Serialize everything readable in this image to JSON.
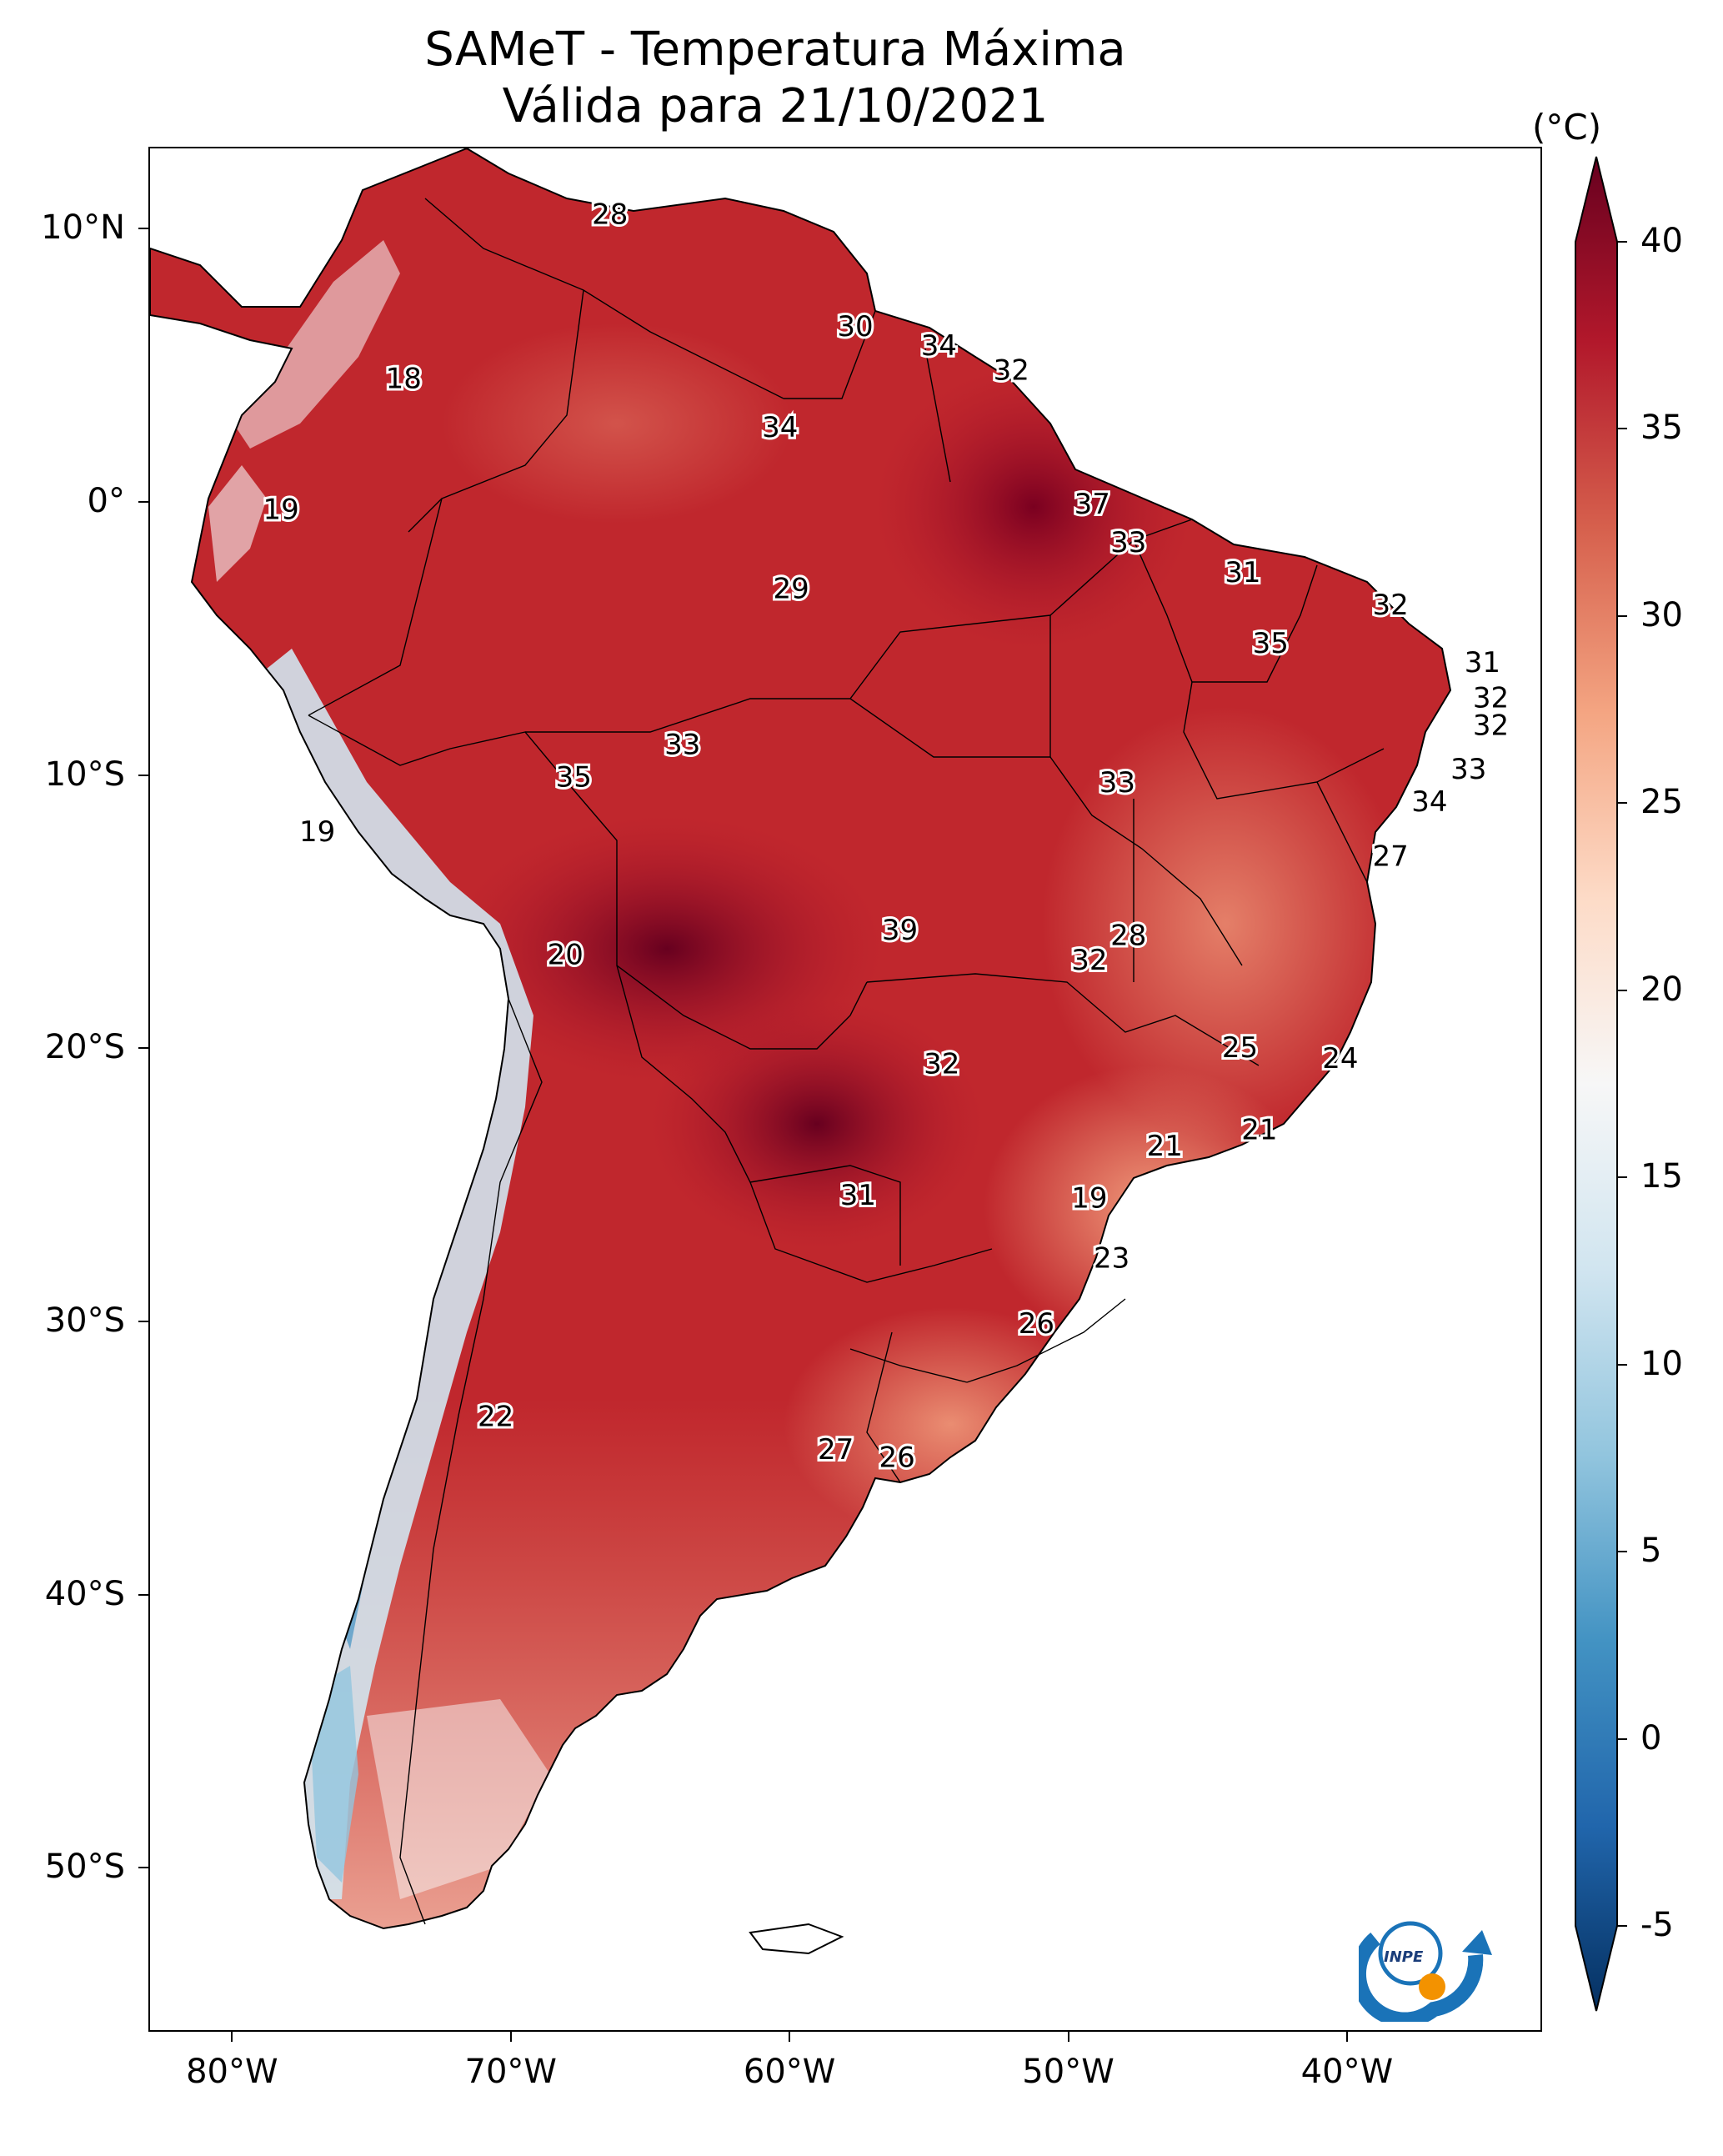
{
  "title": {
    "line1": "SAMeT - Temperatura Máxima",
    "line2": "Válida para 21/10/2021"
  },
  "latitude_labels": [
    "10°N",
    "0°",
    "10°S",
    "20°S",
    "30°S",
    "40°S",
    "50°S"
  ],
  "longitude_labels": [
    "80°W",
    "70°W",
    "60°W",
    "50°W",
    "40°W"
  ],
  "colorbar": {
    "unit": "(°C)",
    "ticks": [
      "40",
      "35",
      "30",
      "25",
      "20",
      "15",
      "10",
      "5",
      "0",
      "-5"
    ],
    "colors": [
      "#053061",
      "#2166ac",
      "#4393c3",
      "#92c5de",
      "#d1e5f0",
      "#f7f7f7",
      "#fddbc7",
      "#f4a582",
      "#d6604d",
      "#b2182b",
      "#67001f"
    ]
  },
  "logo": {
    "text": "INPE"
  },
  "station_values": [
    {
      "label": "28",
      "lon": -66.5,
      "lat": 10.6
    },
    {
      "label": "30",
      "lon": -57.7,
      "lat": 6.5
    },
    {
      "label": "34",
      "lon": -54.7,
      "lat": 5.8
    },
    {
      "label": "32",
      "lon": -52.1,
      "lat": 4.9
    },
    {
      "label": "18",
      "lon": -73.9,
      "lat": 4.6
    },
    {
      "label": "34",
      "lon": -60.4,
      "lat": 2.8
    },
    {
      "label": "37",
      "lon": -49.2,
      "lat": 0.0
    },
    {
      "label": "19",
      "lon": -78.3,
      "lat": -0.2
    },
    {
      "label": "33",
      "lon": -47.9,
      "lat": -1.4
    },
    {
      "label": "31",
      "lon": -43.8,
      "lat": -2.5
    },
    {
      "label": "29",
      "lon": -60.0,
      "lat": -3.1
    },
    {
      "label": "32",
      "lon": -38.5,
      "lat": -3.7
    },
    {
      "label": "35",
      "lon": -42.8,
      "lat": -5.1
    },
    {
      "label": "31",
      "lon": -35.2,
      "lat": -5.8
    },
    {
      "label": "32",
      "lon": -34.9,
      "lat": -7.1
    },
    {
      "label": "32",
      "lon": -34.9,
      "lat": -8.1
    },
    {
      "label": "33",
      "lon": -63.9,
      "lat": -8.8
    },
    {
      "label": "35",
      "lon": -67.8,
      "lat": -10.0
    },
    {
      "label": "33",
      "lon": -48.3,
      "lat": -10.2
    },
    {
      "label": "33",
      "lon": -35.7,
      "lat": -9.7
    },
    {
      "label": "34",
      "lon": -37.1,
      "lat": -10.9
    },
    {
      "label": "19",
      "lon": -77.0,
      "lat": -12.0
    },
    {
      "label": "27",
      "lon": -38.5,
      "lat": -12.9
    },
    {
      "label": "39",
      "lon": -56.1,
      "lat": -15.6
    },
    {
      "label": "28",
      "lon": -47.9,
      "lat": -15.8
    },
    {
      "label": "32",
      "lon": -49.3,
      "lat": -16.7
    },
    {
      "label": "20",
      "lon": -68.1,
      "lat": -16.5
    },
    {
      "label": "25",
      "lon": -43.9,
      "lat": -19.9
    },
    {
      "label": "24",
      "lon": -40.3,
      "lat": -20.3
    },
    {
      "label": "32",
      "lon": -54.6,
      "lat": -20.5
    },
    {
      "label": "21",
      "lon": -43.2,
      "lat": -22.9
    },
    {
      "label": "21",
      "lon": -46.6,
      "lat": -23.5
    },
    {
      "label": "31",
      "lon": -57.6,
      "lat": -25.3
    },
    {
      "label": "19",
      "lon": -49.3,
      "lat": -25.4
    },
    {
      "label": "23",
      "lon": -48.5,
      "lat": -27.6
    },
    {
      "label": "26",
      "lon": -51.2,
      "lat": -30.0
    },
    {
      "label": "22",
      "lon": -70.6,
      "lat": -33.4
    },
    {
      "label": "27",
      "lon": -58.4,
      "lat": -34.6
    },
    {
      "label": "26",
      "lon": -56.2,
      "lat": -34.9
    }
  ]
}
